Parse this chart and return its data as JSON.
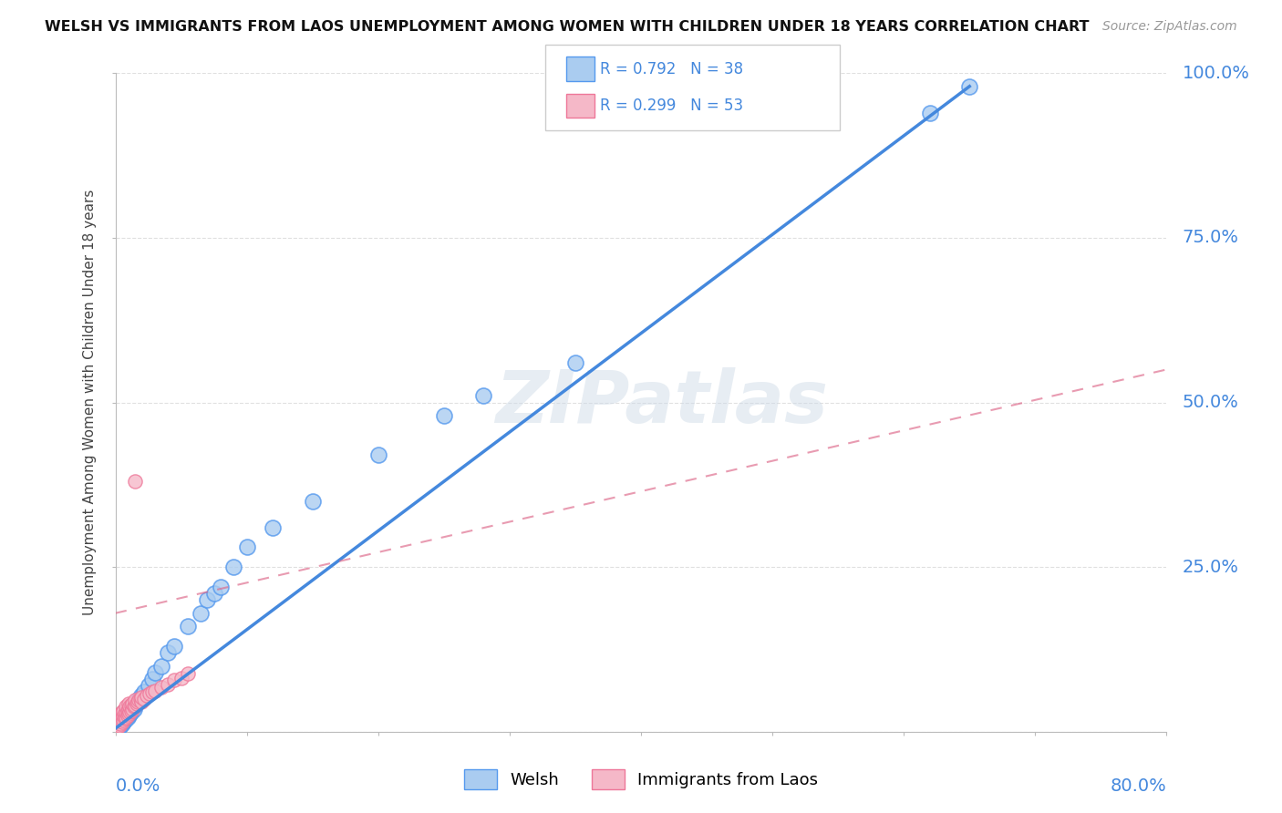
{
  "title": "WELSH VS IMMIGRANTS FROM LAOS UNEMPLOYMENT AMONG WOMEN WITH CHILDREN UNDER 18 YEARS CORRELATION CHART",
  "source": "Source: ZipAtlas.com",
  "ylabel": "Unemployment Among Women with Children Under 18 years",
  "welsh_R": 0.792,
  "welsh_N": 38,
  "laos_R": 0.299,
  "laos_N": 53,
  "welsh_color": "#aaccf0",
  "welsh_edge_color": "#5599ee",
  "welsh_line_color": "#4488dd",
  "laos_color": "#f5b8c8",
  "laos_edge_color": "#ee7799",
  "laos_line_color": "#dd6688",
  "background_color": "#ffffff",
  "grid_color": "#dddddd",
  "xlim": [
    0.0,
    0.8
  ],
  "ylim": [
    0.0,
    1.0
  ],
  "welsh_scatter_x": [
    0.002,
    0.003,
    0.004,
    0.005,
    0.006,
    0.007,
    0.008,
    0.009,
    0.01,
    0.011,
    0.012,
    0.014,
    0.015,
    0.016,
    0.018,
    0.02,
    0.022,
    0.025,
    0.028,
    0.03,
    0.035,
    0.04,
    0.045,
    0.055,
    0.065,
    0.07,
    0.075,
    0.08,
    0.09,
    0.1,
    0.12,
    0.15,
    0.2,
    0.25,
    0.28,
    0.35,
    0.62,
    0.65
  ],
  "welsh_scatter_y": [
    0.005,
    0.008,
    0.01,
    0.012,
    0.015,
    0.018,
    0.02,
    0.022,
    0.025,
    0.028,
    0.03,
    0.035,
    0.04,
    0.045,
    0.05,
    0.055,
    0.06,
    0.07,
    0.08,
    0.09,
    0.1,
    0.12,
    0.13,
    0.16,
    0.18,
    0.2,
    0.21,
    0.22,
    0.25,
    0.28,
    0.31,
    0.35,
    0.42,
    0.48,
    0.51,
    0.56,
    0.94,
    0.98
  ],
  "laos_scatter_x": [
    0.001,
    0.001,
    0.002,
    0.002,
    0.002,
    0.003,
    0.003,
    0.003,
    0.004,
    0.004,
    0.004,
    0.005,
    0.005,
    0.005,
    0.006,
    0.006,
    0.006,
    0.007,
    0.007,
    0.008,
    0.008,
    0.008,
    0.009,
    0.009,
    0.01,
    0.01,
    0.01,
    0.011,
    0.011,
    0.012,
    0.012,
    0.013,
    0.013,
    0.014,
    0.015,
    0.015,
    0.016,
    0.017,
    0.018,
    0.019,
    0.02,
    0.02,
    0.022,
    0.024,
    0.026,
    0.028,
    0.03,
    0.035,
    0.04,
    0.045,
    0.05,
    0.055,
    0.015
  ],
  "laos_scatter_y": [
    0.005,
    0.01,
    0.008,
    0.015,
    0.02,
    0.01,
    0.018,
    0.025,
    0.012,
    0.02,
    0.028,
    0.015,
    0.022,
    0.03,
    0.018,
    0.025,
    0.032,
    0.02,
    0.028,
    0.022,
    0.03,
    0.038,
    0.025,
    0.032,
    0.028,
    0.035,
    0.042,
    0.03,
    0.038,
    0.032,
    0.04,
    0.035,
    0.042,
    0.038,
    0.04,
    0.048,
    0.042,
    0.045,
    0.048,
    0.05,
    0.045,
    0.052,
    0.05,
    0.055,
    0.058,
    0.06,
    0.062,
    0.068,
    0.072,
    0.078,
    0.082,
    0.088,
    0.38
  ],
  "welsh_line_x0": 0.0,
  "welsh_line_x1": 0.65,
  "welsh_line_y0": 0.005,
  "welsh_line_y1": 0.98,
  "laos_line_x0": 0.0,
  "laos_line_x1": 0.8,
  "laos_line_y0": 0.18,
  "laos_line_y1": 0.55
}
